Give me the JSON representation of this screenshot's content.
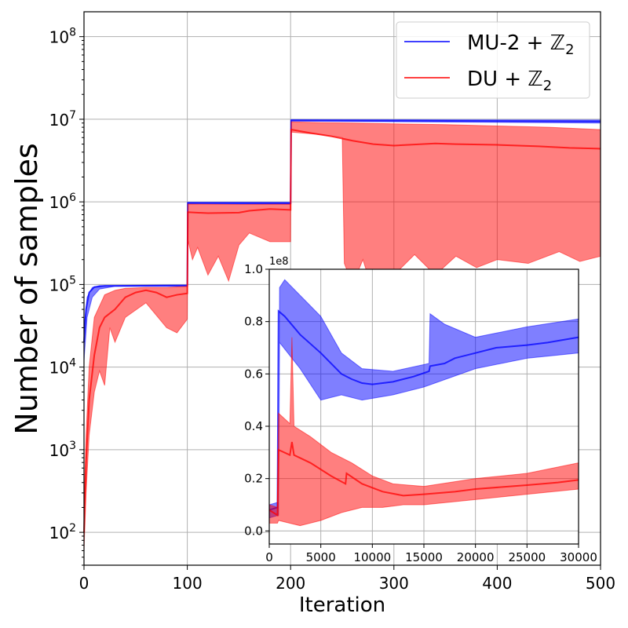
{
  "chart_data": [
    {
      "type": "line",
      "xlabel": "Iteration",
      "ylabel": "Number of samples",
      "xlim": [
        0,
        500
      ],
      "ylim": [
        40,
        200000000
      ],
      "yscale": "log",
      "grid": true,
      "legend_position": "top-right",
      "x_tick_labels": [
        "0",
        "100",
        "200",
        "300",
        "400",
        "500"
      ],
      "x_ticks": [
        0,
        100,
        200,
        300,
        400,
        500
      ],
      "y_ticks": [
        100,
        1000,
        10000,
        100000,
        1000000,
        10000000,
        100000000
      ],
      "y_tick_bases": [
        "10",
        "10",
        "10",
        "10",
        "10",
        "10",
        "10"
      ],
      "y_tick_exps": [
        "2",
        "3",
        "4",
        "5",
        "6",
        "7",
        "8"
      ],
      "series": [
        {
          "name": "MU-2 + ℤ",
          "name_sub": "2",
          "color": "#0000ff",
          "points": [
            [
              0,
              20000
            ],
            [
              2,
              50000
            ],
            [
              5,
              80000
            ],
            [
              10,
              93000
            ],
            [
              20,
              96000
            ],
            [
              100,
              97000
            ],
            [
              100.5,
              970000
            ],
            [
              200,
              960000
            ],
            [
              200.5,
              9700000
            ],
            [
              500,
              9400000
            ]
          ],
          "band_lower": [
            [
              0,
              12000
            ],
            [
              3,
              40000
            ],
            [
              8,
              70000
            ],
            [
              15,
              88000
            ],
            [
              30,
              95000
            ],
            [
              100,
              95000
            ],
            [
              100.5,
              950000
            ],
            [
              200,
              940000
            ],
            [
              200.5,
              9500000
            ],
            [
              500,
              9000000
            ]
          ],
          "band_upper": [
            [
              0,
              30000
            ],
            [
              3,
              70000
            ],
            [
              8,
              92000
            ],
            [
              15,
              97000
            ],
            [
              100,
              99000
            ],
            [
              100.5,
              990000
            ],
            [
              200,
              990000
            ],
            [
              200.5,
              9900000
            ],
            [
              500,
              9800000
            ]
          ]
        },
        {
          "name": "DU + ℤ",
          "name_sub": "2",
          "color": "#ff0000",
          "points": [
            [
              0,
              100
            ],
            [
              2,
              700
            ],
            [
              5,
              4000
            ],
            [
              10,
              14000
            ],
            [
              15,
              30000
            ],
            [
              20,
              40000
            ],
            [
              30,
              50000
            ],
            [
              40,
              70000
            ],
            [
              50,
              80000
            ],
            [
              60,
              85000
            ],
            [
              70,
              80000
            ],
            [
              80,
              70000
            ],
            [
              90,
              75000
            ],
            [
              100,
              78000
            ],
            [
              100.5,
              750000
            ],
            [
              120,
              730000
            ],
            [
              150,
              740000
            ],
            [
              160,
              780000
            ],
            [
              180,
              820000
            ],
            [
              200,
              800000
            ],
            [
              200.5,
              7500000
            ],
            [
              220,
              6800000
            ],
            [
              240,
              6200000
            ],
            [
              260,
              5500000
            ],
            [
              280,
              5000000
            ],
            [
              300,
              4800000
            ],
            [
              340,
              5100000
            ],
            [
              360,
              5000000
            ],
            [
              400,
              4900000
            ],
            [
              440,
              4700000
            ],
            [
              470,
              4500000
            ],
            [
              500,
              4400000
            ]
          ],
          "band_lower": [
            [
              0,
              60
            ],
            [
              2,
              300
            ],
            [
              5,
              1500
            ],
            [
              10,
              5000
            ],
            [
              15,
              9000
            ],
            [
              20,
              6000
            ],
            [
              25,
              30000
            ],
            [
              30,
              20000
            ],
            [
              40,
              40000
            ],
            [
              60,
              60000
            ],
            [
              80,
              30000
            ],
            [
              90,
              26000
            ],
            [
              100,
              38000
            ],
            [
              100.5,
              350000
            ],
            [
              105,
              200000
            ],
            [
              110,
              280000
            ],
            [
              120,
              130000
            ],
            [
              130,
              220000
            ],
            [
              140,
              110000
            ],
            [
              150,
              300000
            ],
            [
              160,
              420000
            ],
            [
              180,
              330000
            ],
            [
              200,
              330000
            ],
            [
              200.5,
              7000000
            ],
            [
              230,
              6500000
            ],
            [
              250,
              6000000
            ],
            [
              252,
              180000
            ],
            [
              260,
              100000
            ],
            [
              270,
              200000
            ],
            [
              280,
              80000
            ],
            [
              300,
              130000
            ],
            [
              320,
              230000
            ],
            [
              340,
              130000
            ],
            [
              360,
              220000
            ],
            [
              380,
              160000
            ],
            [
              400,
              200000
            ],
            [
              430,
              180000
            ],
            [
              460,
              250000
            ],
            [
              480,
              190000
            ],
            [
              500,
              220000
            ]
          ],
          "band_upper": [
            [
              0,
              200
            ],
            [
              2,
              1500
            ],
            [
              5,
              10000
            ],
            [
              10,
              40000
            ],
            [
              20,
              75000
            ],
            [
              30,
              85000
            ],
            [
              40,
              90000
            ],
            [
              60,
              92000
            ],
            [
              80,
              92000
            ],
            [
              100,
              95000
            ],
            [
              100.5,
              940000
            ],
            [
              150,
              930000
            ],
            [
              200,
              940000
            ],
            [
              200.5,
              9300000
            ],
            [
              230,
              9100000
            ],
            [
              260,
              9000000
            ],
            [
              300,
              8800000
            ],
            [
              350,
              8600000
            ],
            [
              400,
              8300000
            ],
            [
              450,
              8000000
            ],
            [
              500,
              7500000
            ]
          ]
        }
      ]
    },
    {
      "type": "line",
      "role": "inset",
      "xlim": [
        0,
        30000
      ],
      "ylim": [
        -0.05,
        1.0
      ],
      "y_multiplier_label": "1e8",
      "grid": true,
      "x_ticks": [
        0,
        5000,
        10000,
        15000,
        20000,
        25000,
        30000
      ],
      "x_tick_labels": [
        "0",
        "5000",
        "10000",
        "15000",
        "20000",
        "25000",
        "30000"
      ],
      "y_ticks": [
        0.0,
        0.2,
        0.4,
        0.6,
        0.8,
        1.0
      ],
      "y_tick_labels": [
        "0.0",
        "0.2",
        "0.4",
        "0.6",
        "0.8",
        "1.0"
      ],
      "series": [
        {
          "color": "#0000ff",
          "points": [
            [
              0,
              0.08
            ],
            [
              800,
              0.09
            ],
            [
              900,
              0.84
            ],
            [
              1500,
              0.82
            ],
            [
              3000,
              0.75
            ],
            [
              5000,
              0.68
            ],
            [
              7000,
              0.6
            ],
            [
              8000,
              0.58
            ],
            [
              9000,
              0.565
            ],
            [
              10000,
              0.56
            ],
            [
              12000,
              0.57
            ],
            [
              14000,
              0.59
            ],
            [
              15500,
              0.61
            ],
            [
              15600,
              0.63
            ],
            [
              17000,
              0.64
            ],
            [
              18000,
              0.66
            ],
            [
              20000,
              0.68
            ],
            [
              22000,
              0.7
            ],
            [
              25000,
              0.71
            ],
            [
              27000,
              0.72
            ],
            [
              30000,
              0.74
            ]
          ],
          "band_lower": [
            [
              0,
              0.05
            ],
            [
              900,
              0.06
            ],
            [
              1000,
              0.72
            ],
            [
              3000,
              0.62
            ],
            [
              5000,
              0.5
            ],
            [
              7000,
              0.52
            ],
            [
              9000,
              0.5
            ],
            [
              12000,
              0.52
            ],
            [
              15000,
              0.55
            ],
            [
              20000,
              0.62
            ],
            [
              25000,
              0.66
            ],
            [
              30000,
              0.68
            ]
          ],
          "band_upper": [
            [
              0,
              0.1
            ],
            [
              900,
              0.11
            ],
            [
              1000,
              0.93
            ],
            [
              1500,
              0.96
            ],
            [
              3000,
              0.9
            ],
            [
              5000,
              0.82
            ],
            [
              7000,
              0.68
            ],
            [
              9000,
              0.62
            ],
            [
              12000,
              0.61
            ],
            [
              15500,
              0.64
            ],
            [
              15600,
              0.83
            ],
            [
              17000,
              0.79
            ],
            [
              20000,
              0.74
            ],
            [
              25000,
              0.78
            ],
            [
              30000,
              0.81
            ]
          ]
        },
        {
          "color": "#ff0000",
          "points": [
            [
              0,
              0.08
            ],
            [
              800,
              0.06
            ],
            [
              900,
              0.31
            ],
            [
              2000,
              0.29
            ],
            [
              2200,
              0.34
            ],
            [
              2400,
              0.29
            ],
            [
              4000,
              0.26
            ],
            [
              6000,
              0.21
            ],
            [
              7400,
              0.18
            ],
            [
              7500,
              0.22
            ],
            [
              9000,
              0.18
            ],
            [
              11000,
              0.15
            ],
            [
              13000,
              0.135
            ],
            [
              15000,
              0.14
            ],
            [
              18000,
              0.15
            ],
            [
              20000,
              0.16
            ],
            [
              25000,
              0.175
            ],
            [
              28000,
              0.185
            ],
            [
              30000,
              0.195
            ]
          ],
          "band_lower": [
            [
              0,
              0.03
            ],
            [
              800,
              0.03
            ],
            [
              900,
              0.04
            ],
            [
              3000,
              0.02
            ],
            [
              5000,
              0.04
            ],
            [
              7000,
              0.07
            ],
            [
              9000,
              0.09
            ],
            [
              11000,
              0.09
            ],
            [
              13000,
              0.1
            ],
            [
              15000,
              0.1
            ],
            [
              20000,
              0.12
            ],
            [
              25000,
              0.14
            ],
            [
              30000,
              0.16
            ]
          ],
          "band_upper": [
            [
              0,
              0.1
            ],
            [
              800,
              0.09
            ],
            [
              900,
              0.45
            ],
            [
              2000,
              0.41
            ],
            [
              2200,
              0.74
            ],
            [
              2400,
              0.4
            ],
            [
              4000,
              0.36
            ],
            [
              6000,
              0.3
            ],
            [
              8000,
              0.26
            ],
            [
              10000,
              0.21
            ],
            [
              12000,
              0.18
            ],
            [
              15000,
              0.17
            ],
            [
              20000,
              0.2
            ],
            [
              25000,
              0.22
            ],
            [
              30000,
              0.26
            ]
          ]
        }
      ]
    }
  ]
}
